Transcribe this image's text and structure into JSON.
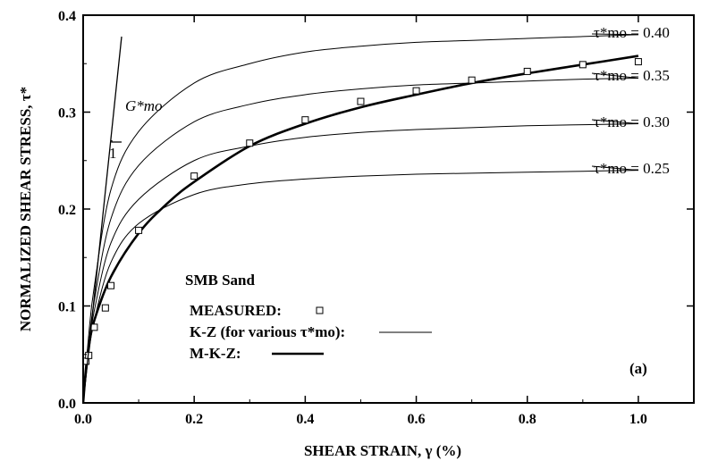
{
  "chart_data": {
    "type": "line",
    "xlabel": "SHEAR STRAIN, γ (%)",
    "ylabel": "NORMALIZED SHEAR STRESS, τ*",
    "xlim": [
      0,
      1.1
    ],
    "ylim": [
      0,
      0.4
    ],
    "x_ticks": [
      "0.0",
      "0.2",
      "0.4",
      "0.6",
      "0.8",
      "1.0"
    ],
    "y_ticks": [
      "0.0",
      "0.1",
      "0.2",
      "0.3",
      "0.4"
    ],
    "grid": false,
    "legend": {
      "title": "SMB Sand",
      "measured_label": "MEASURED:",
      "kz_label": "K-Z (for various τ*mo):",
      "mkz_label": "M-K-Z:",
      "placement": "bottom-center"
    },
    "panel_label": "(a)",
    "slope_annotation": {
      "label": "G*mo",
      "run": "1"
    },
    "measured": {
      "x": [
        0.005,
        0.01,
        0.02,
        0.04,
        0.05,
        0.1,
        0.2,
        0.3,
        0.4,
        0.5,
        0.6,
        0.7,
        0.8,
        0.9,
        1.0
      ],
      "y": [
        0.043,
        0.049,
        0.078,
        0.098,
        0.121,
        0.178,
        0.234,
        0.268,
        0.292,
        0.311,
        0.322,
        0.333,
        0.342,
        0.349,
        0.352
      ]
    },
    "kz_curves": [
      {
        "label": "τ*mo = 0.40",
        "tau_mo": 0.4,
        "x": [
          0,
          0.01,
          0.02,
          0.05,
          0.1,
          0.2,
          0.3,
          0.4,
          0.5,
          0.6,
          0.7,
          0.8,
          0.9,
          1.0
        ],
        "y": [
          0,
          0.07,
          0.12,
          0.22,
          0.28,
          0.33,
          0.35,
          0.362,
          0.368,
          0.372,
          0.374,
          0.376,
          0.378,
          0.38
        ]
      },
      {
        "label": "τ*mo = 0.35",
        "tau_mo": 0.35,
        "x": [
          0,
          0.01,
          0.02,
          0.05,
          0.1,
          0.2,
          0.3,
          0.4,
          0.5,
          0.6,
          0.7,
          0.8,
          0.9,
          1.0
        ],
        "y": [
          0,
          0.06,
          0.105,
          0.19,
          0.245,
          0.29,
          0.308,
          0.318,
          0.324,
          0.328,
          0.33,
          0.332,
          0.334,
          0.335
        ]
      },
      {
        "label": "τ*mo = 0.30",
        "tau_mo": 0.3,
        "x": [
          0,
          0.01,
          0.02,
          0.05,
          0.1,
          0.2,
          0.3,
          0.4,
          0.5,
          0.6,
          0.7,
          0.8,
          0.9,
          1.0
        ],
        "y": [
          0,
          0.055,
          0.095,
          0.165,
          0.21,
          0.25,
          0.265,
          0.274,
          0.279,
          0.282,
          0.284,
          0.286,
          0.287,
          0.288
        ]
      },
      {
        "label": "τ*mo = 0.25",
        "tau_mo": 0.25,
        "x": [
          0,
          0.01,
          0.02,
          0.05,
          0.1,
          0.2,
          0.3,
          0.4,
          0.5,
          0.6,
          0.7,
          0.8,
          0.9,
          1.0
        ],
        "y": [
          0,
          0.05,
          0.085,
          0.145,
          0.185,
          0.215,
          0.226,
          0.231,
          0.234,
          0.236,
          0.237,
          0.238,
          0.239,
          0.24
        ]
      }
    ],
    "mkz_curve": {
      "x": [
        0,
        0.005,
        0.01,
        0.02,
        0.05,
        0.1,
        0.15,
        0.2,
        0.3,
        0.4,
        0.5,
        0.6,
        0.7,
        0.8,
        0.9,
        1.0
      ],
      "y": [
        0,
        0.035,
        0.058,
        0.085,
        0.13,
        0.175,
        0.205,
        0.228,
        0.265,
        0.288,
        0.305,
        0.318,
        0.33,
        0.34,
        0.349,
        0.358
      ]
    }
  }
}
